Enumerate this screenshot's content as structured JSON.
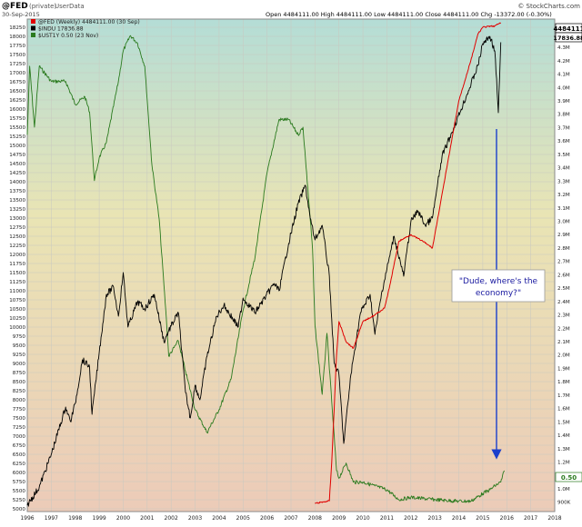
{
  "header": {
    "symbol": "@FED",
    "qualifier": "(private)",
    "source": "UserData",
    "date": "30-Sep-2015",
    "ohlc": "Open 4484111.00  High 4484111.00  Low 4484111.00  Close 4484111.00  Chg -13372.00 (-0.30%)",
    "credit": "© StockCharts.com"
  },
  "legend": [
    {
      "label": "@FED (Weekly) 4484111.00 (30 Sep)",
      "color": "#e00000"
    },
    {
      "label": "$INDU 17836.88",
      "color": "#000000"
    },
    {
      "label": "$UST1Y 0.50 (23 Nov)",
      "color": "#2a7a1e"
    }
  ],
  "annotation": "\"Dude, where's the economy?\"",
  "badges": {
    "fed": "4484111",
    "indu": "17836.88",
    "ust": "0.50"
  },
  "colors": {
    "fed": "#e00000",
    "indu": "#000000",
    "ust": "#2a7a1e",
    "arrow": "#1a3fcc",
    "annotation_text": "#1a1aa0"
  },
  "chart_data": {
    "type": "line",
    "x_ticks": [
      "1996",
      "1997",
      "1998",
      "1999",
      "2000",
      "2001",
      "2002",
      "2003",
      "2004",
      "2005",
      "2006",
      "2007",
      "2008",
      "2009",
      "2010",
      "2011",
      "2012",
      "2013",
      "2014",
      "2015",
      "2016",
      "2017",
      "2018"
    ],
    "xlim": [
      1996,
      2018
    ],
    "left_axis": {
      "ticks": [
        "5000",
        "5250",
        "5500",
        "5750",
        "6000",
        "6250",
        "6500",
        "6750",
        "7000",
        "7250",
        "7500",
        "7750",
        "8000",
        "8250",
        "8500",
        "8750",
        "9000",
        "9250",
        "9500",
        "9750",
        "10000",
        "10250",
        "10500",
        "10750",
        "11000",
        "11250",
        "11500",
        "11750",
        "12000",
        "12250",
        "12500",
        "12750",
        "13000",
        "13250",
        "13500",
        "13750",
        "14000",
        "14250",
        "14500",
        "14750",
        "15000",
        "15250",
        "15500",
        "15750",
        "16000",
        "16250",
        "16500",
        "16750",
        "17000",
        "17250",
        "17500",
        "17750",
        "18000",
        "18250"
      ],
      "ylim": [
        5000,
        18250
      ]
    },
    "right_axis": {
      "ticks": [
        "900K",
        "1.0M",
        "1.1M",
        "1.2M",
        "1.3M",
        "1.4M",
        "1.5M",
        "1.6M",
        "1.7M",
        "1.8M",
        "1.9M",
        "2.0M",
        "2.1M",
        "2.2M",
        "2.3M",
        "2.4M",
        "2.5M",
        "2.6M",
        "2.7M",
        "2.8M",
        "2.9M",
        "3.0M",
        "3.1M",
        "3.2M",
        "3.3M",
        "3.4M",
        "3.5M",
        "3.6M",
        "3.7M",
        "3.8M",
        "3.9M",
        "4.0M",
        "4.1M",
        "4.2M",
        "4.3M",
        "4.4M"
      ],
      "ylim": [
        850000,
        4450000
      ]
    },
    "series": [
      {
        "name": "@FED (Weekly)",
        "axis": "right",
        "x": [
          2008.0,
          2008.6,
          2008.7,
          2008.9,
          2009.0,
          2009.3,
          2009.6,
          2010.0,
          2010.5,
          2010.9,
          2011.1,
          2011.5,
          2012.0,
          2012.5,
          2012.9,
          2013.2,
          2013.6,
          2014.0,
          2014.5,
          2014.8,
          2015.0,
          2015.5,
          2015.75
        ],
        "y": [
          890000,
          910000,
          1200000,
          2000000,
          2250000,
          2100000,
          2050000,
          2250000,
          2300000,
          2350000,
          2500000,
          2850000,
          2900000,
          2850000,
          2800000,
          3100000,
          3500000,
          3900000,
          4200000,
          4400000,
          4450000,
          4460000,
          4484111
        ]
      },
      {
        "name": "$INDU",
        "axis": "left",
        "x": [
          1996.0,
          1996.5,
          1997.0,
          1997.6,
          1997.8,
          1998.0,
          1998.3,
          1998.6,
          1998.7,
          1999.0,
          1999.3,
          1999.6,
          1999.8,
          2000.0,
          2000.2,
          2000.6,
          2000.9,
          2001.3,
          2001.7,
          2001.9,
          2002.3,
          2002.6,
          2002.8,
          2003.0,
          2003.2,
          2003.5,
          2003.9,
          2004.2,
          2004.8,
          2005.0,
          2005.5,
          2005.9,
          2006.3,
          2006.5,
          2006.9,
          2007.3,
          2007.6,
          2007.8,
          2008.0,
          2008.3,
          2008.6,
          2008.8,
          2009.0,
          2009.2,
          2009.5,
          2009.9,
          2010.3,
          2010.5,
          2010.8,
          2011.3,
          2011.7,
          2012.0,
          2012.3,
          2012.6,
          2012.9,
          2013.3,
          2013.8,
          2014.1,
          2014.4,
          2014.8,
          2015.0,
          2015.3,
          2015.5,
          2015.65,
          2015.75
        ],
        "y": [
          5100,
          5600,
          6500,
          7800,
          7400,
          7900,
          9100,
          8900,
          7600,
          9300,
          10900,
          11100,
          10300,
          11500,
          10000,
          10700,
          10500,
          10900,
          9600,
          9900,
          10400,
          8200,
          7500,
          8400,
          8000,
          9200,
          10300,
          10600,
          10000,
          10800,
          10400,
          10800,
          11200,
          11000,
          12300,
          13400,
          13900,
          13000,
          12400,
          12800,
          11400,
          9000,
          8700,
          6800,
          8700,
          10400,
          10900,
          9800,
          11000,
          12500,
          11400,
          12900,
          13200,
          12800,
          13000,
          14700,
          15500,
          16000,
          16500,
          17200,
          17800,
          18000,
          17600,
          15900,
          17836.88
        ]
      },
      {
        "name": "$UST1Y",
        "axis": "left_scaled",
        "x": [
          1996.0,
          1996.1,
          1996.3,
          1996.5,
          1997.0,
          1997.6,
          1998.0,
          1998.4,
          1998.6,
          1998.8,
          1999.0,
          1999.3,
          1999.8,
          2000.0,
          2000.3,
          2000.6,
          2000.9,
          2001.2,
          2001.5,
          2001.8,
          2001.9,
          2002.3,
          2002.6,
          2003.0,
          2003.5,
          2004.0,
          2004.5,
          2005.0,
          2005.5,
          2006.0,
          2006.5,
          2006.9,
          2007.3,
          2007.5,
          2007.7,
          2007.9,
          2008.0,
          2008.3,
          2008.5,
          2008.7,
          2008.9,
          2009.0,
          2009.3,
          2009.6,
          2010.0,
          2010.5,
          2011.0,
          2011.5,
          2012.0,
          2013.0,
          2014.0,
          2014.5,
          2015.0,
          2015.3,
          2015.5,
          2015.75,
          2015.9
        ],
        "y": [
          4.9,
          5.8,
          5.0,
          5.8,
          5.6,
          5.6,
          5.3,
          5.4,
          5.2,
          4.3,
          4.6,
          4.8,
          5.6,
          6.0,
          6.2,
          6.1,
          5.8,
          4.5,
          3.8,
          2.5,
          2.0,
          2.2,
          1.8,
          1.3,
          1.0,
          1.3,
          1.7,
          2.6,
          3.3,
          4.4,
          5.1,
          5.1,
          4.9,
          5.0,
          4.2,
          3.4,
          2.4,
          1.5,
          2.3,
          1.4,
          0.5,
          0.4,
          0.6,
          0.35,
          0.35,
          0.3,
          0.25,
          0.12,
          0.15,
          0.12,
          0.1,
          0.1,
          0.2,
          0.25,
          0.3,
          0.35,
          0.5
        ]
      }
    ]
  }
}
